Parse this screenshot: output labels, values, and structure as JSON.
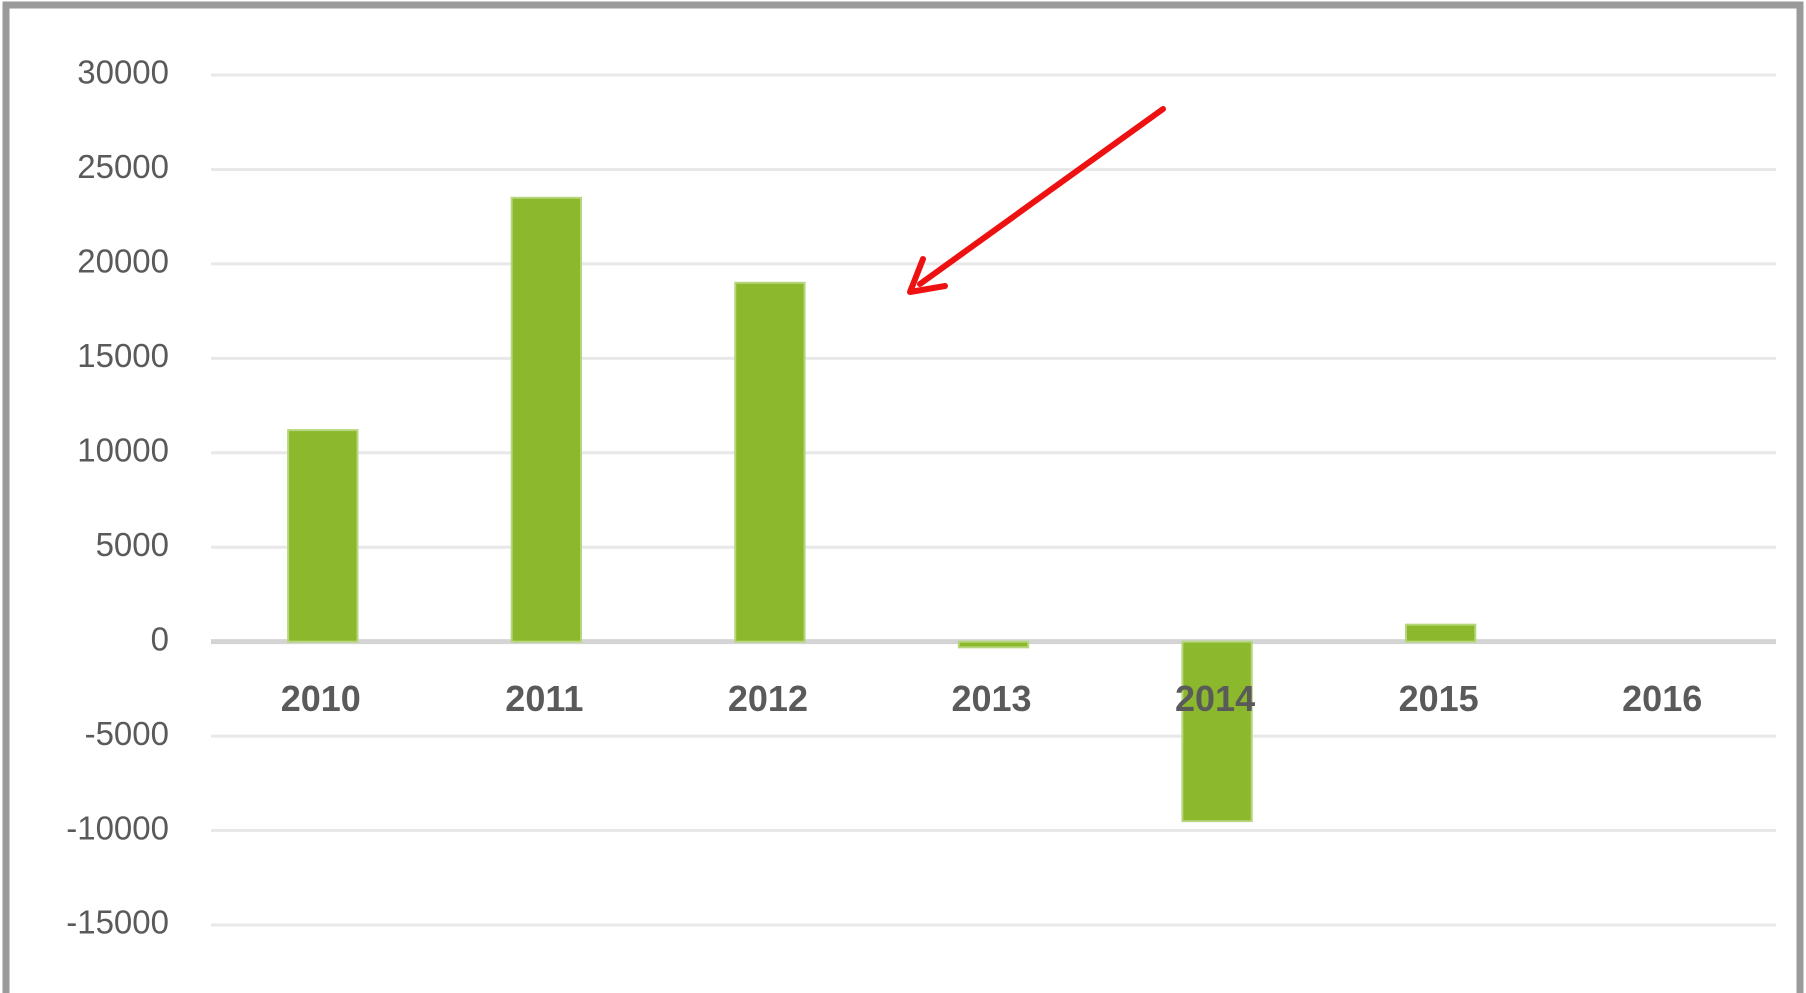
{
  "chart_data": {
    "type": "bar",
    "categories": [
      "2010",
      "2011",
      "2012",
      "2013",
      "2014",
      "2015",
      "2016"
    ],
    "values": [
      11200,
      23500,
      19000,
      -300,
      -9500,
      900,
      0
    ],
    "color": "#8cb82e",
    "ylim": [
      -15000,
      30000
    ],
    "yticks": [
      -15000,
      -10000,
      -5000,
      0,
      5000,
      10000,
      15000,
      20000,
      25000,
      30000
    ],
    "grid": true
  }
}
